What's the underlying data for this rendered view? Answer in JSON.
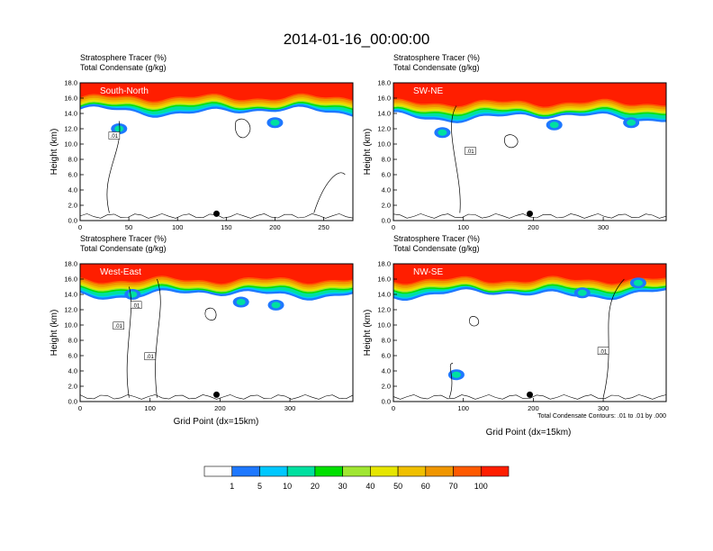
{
  "figure": {
    "title": "2014-01-16_00:00:00",
    "xlabel": "Grid Point (dx=15km)",
    "ylabel": "Height (km)",
    "header_line1": "Stratosphere Tracer   (%)",
    "header_line2": "Total Condensate   (g/kg)",
    "contour_info": "Total Condensate Contours: .01 to .01 by .000",
    "contour_label": ".01"
  },
  "chart_data": [
    {
      "type": "heatmap",
      "panel": "South-North",
      "xlim": [
        0,
        280
      ],
      "xticks": [
        0,
        50,
        100,
        150,
        200,
        250
      ],
      "ylim": [
        0,
        18
      ],
      "yticks": [
        "0.0",
        "2.0",
        "4.0",
        "6.0",
        "8.0",
        "10.0",
        "12.0",
        "14.0",
        "16.0",
        "18.0"
      ],
      "marker_x": 140,
      "stratosphere_floor_km": 14.2
    },
    {
      "type": "heatmap",
      "panel": "SW-NE",
      "xlim": [
        0,
        390
      ],
      "xticks": [
        0,
        100,
        200,
        300
      ],
      "ylim": [
        0,
        18
      ],
      "yticks": [
        "0.0",
        "2.0",
        "4.0",
        "6.0",
        "8.0",
        "10.0",
        "12.0",
        "14.0",
        "16.0",
        "18.0"
      ],
      "marker_x": 195,
      "stratosphere_floor_km": 13.5
    },
    {
      "type": "heatmap",
      "panel": "West-East",
      "xlim": [
        0,
        390
      ],
      "xticks": [
        0,
        100,
        200,
        300
      ],
      "ylim": [
        0,
        18
      ],
      "yticks": [
        "0.0",
        "2.0",
        "4.0",
        "6.0",
        "8.0",
        "10.0",
        "12.0",
        "14.0",
        "16.0",
        "18.0"
      ],
      "marker_x": 195,
      "stratosphere_floor_km": 14.0
    },
    {
      "type": "heatmap",
      "panel": "NW-SE",
      "xlim": [
        0,
        390
      ],
      "xticks": [
        0,
        100,
        200,
        300
      ],
      "ylim": [
        0,
        18
      ],
      "yticks": [
        "0.0",
        "2.0",
        "4.0",
        "6.0",
        "8.0",
        "10.0",
        "12.0",
        "14.0",
        "16.0",
        "18.0"
      ],
      "marker_x": 195,
      "stratosphere_floor_km": 14.0
    }
  ],
  "colorbar": {
    "labels": [
      "1",
      "5",
      "10",
      "20",
      "30",
      "40",
      "50",
      "60",
      "70",
      "100"
    ],
    "colors": [
      "#ffffff",
      "#1e78ff",
      "#00c8ff",
      "#00e0a0",
      "#00e000",
      "#a0e632",
      "#e6e600",
      "#f0c000",
      "#f09600",
      "#ff5a00",
      "#ff1e00"
    ]
  }
}
